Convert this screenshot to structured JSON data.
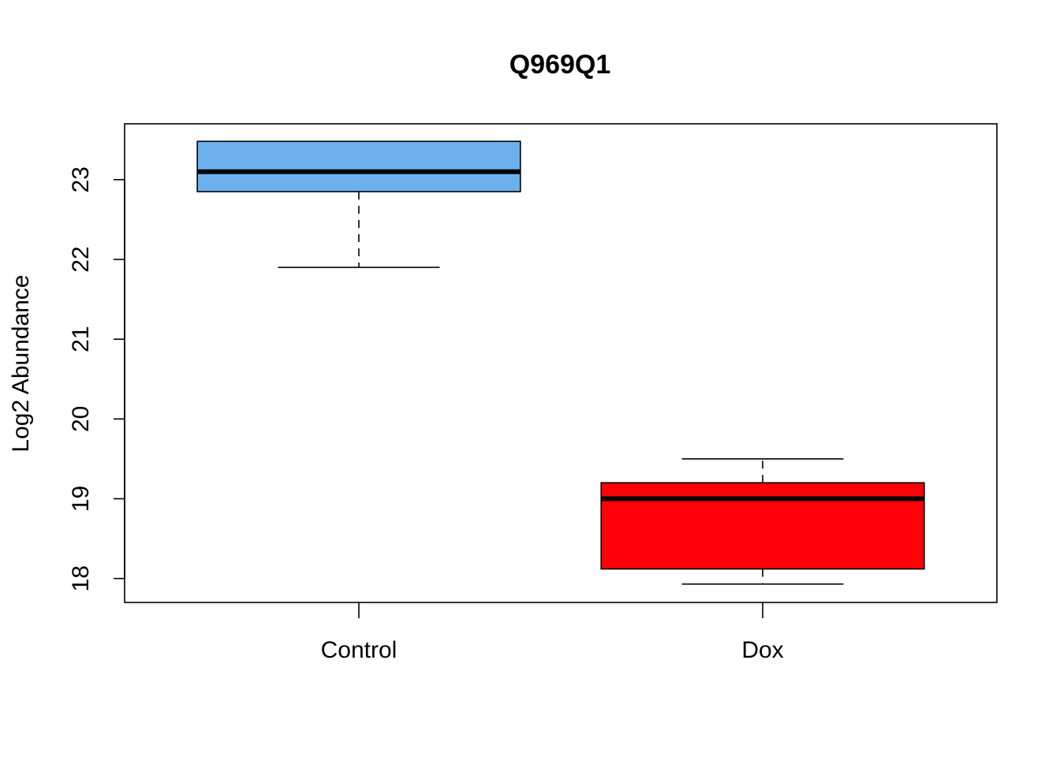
{
  "chart_data": {
    "type": "box",
    "title": "Q969Q1",
    "xlabel": "",
    "ylabel": "Log2 Abundance",
    "ylim": [
      17.7,
      23.7
    ],
    "yticks": [
      18,
      19,
      20,
      21,
      22,
      23
    ],
    "grid": false,
    "categories": [
      "Control",
      "Dox"
    ],
    "boxes": [
      {
        "category": "Control",
        "color": "#6CB1EE",
        "whisker_low": 21.9,
        "q1": 22.85,
        "median": 23.1,
        "q3": 23.48,
        "whisker_high": 23.48
      },
      {
        "category": "Dox",
        "color": "#FF0008",
        "whisker_low": 17.93,
        "q1": 18.12,
        "median": 19.0,
        "q3": 19.2,
        "whisker_high": 19.5
      }
    ]
  }
}
